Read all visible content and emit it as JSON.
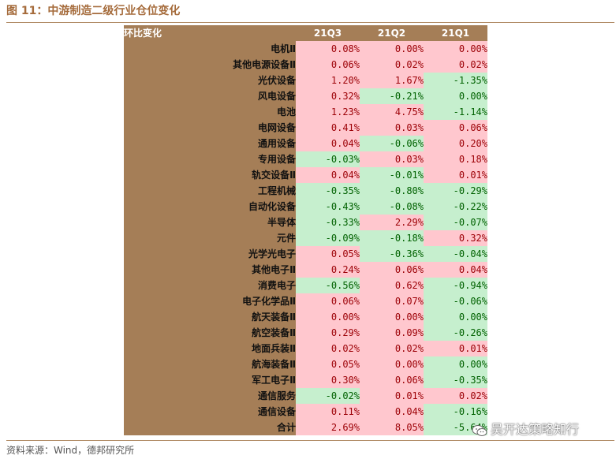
{
  "figure": {
    "title": "图 11：中游制造二级行业仓位变化",
    "source": "资料来源：Wind，德邦研究所",
    "watermark": "吴开达策略知行",
    "watermark_icon": "wechat-icon"
  },
  "table": {
    "header": {
      "label": "环比变化",
      "columns": [
        "21Q3",
        "21Q2",
        "21Q1"
      ]
    },
    "rows": [
      {
        "name": "电机Ⅱ",
        "values": [
          "0.08%",
          "0.00%",
          "0.00%"
        ]
      },
      {
        "name": "其他电源设备Ⅱ",
        "values": [
          "0.06%",
          "0.02%",
          "0.02%"
        ]
      },
      {
        "name": "光伏设备",
        "values": [
          "1.20%",
          "1.67%",
          "-1.35%"
        ]
      },
      {
        "name": "风电设备",
        "values": [
          "0.32%",
          "-0.21%",
          "0.00%"
        ]
      },
      {
        "name": "电池",
        "values": [
          "1.23%",
          "4.75%",
          "-1.14%"
        ]
      },
      {
        "name": "电网设备",
        "values": [
          "0.41%",
          "0.03%",
          "0.06%"
        ]
      },
      {
        "name": "通用设备",
        "values": [
          "0.04%",
          "-0.06%",
          "0.20%"
        ]
      },
      {
        "name": "专用设备",
        "values": [
          "-0.03%",
          "0.03%",
          "0.18%"
        ]
      },
      {
        "name": "轨交设备Ⅱ",
        "values": [
          "0.04%",
          "-0.01%",
          "0.01%"
        ]
      },
      {
        "name": "工程机械",
        "values": [
          "-0.35%",
          "-0.80%",
          "-0.29%"
        ]
      },
      {
        "name": "自动化设备",
        "values": [
          "-0.43%",
          "-0.08%",
          "-0.22%"
        ]
      },
      {
        "name": "半导体",
        "values": [
          "-0.33%",
          "2.29%",
          "-0.07%"
        ]
      },
      {
        "name": "元件",
        "values": [
          "-0.09%",
          "-0.18%",
          "0.32%"
        ]
      },
      {
        "name": "光学光电子",
        "values": [
          "0.05%",
          "-0.36%",
          "-0.04%"
        ]
      },
      {
        "name": "其他电子Ⅱ",
        "values": [
          "0.24%",
          "0.06%",
          "0.04%"
        ]
      },
      {
        "name": "消费电子",
        "values": [
          "-0.56%",
          "0.62%",
          "-0.94%"
        ]
      },
      {
        "name": "电子化学品Ⅱ",
        "values": [
          "0.06%",
          "0.07%",
          "-0.06%"
        ]
      },
      {
        "name": "航天装备Ⅱ",
        "values": [
          "0.00%",
          "0.00%",
          "0.00%"
        ]
      },
      {
        "name": "航空装备Ⅱ",
        "values": [
          "0.29%",
          "0.09%",
          "-0.26%"
        ]
      },
      {
        "name": "地面兵装Ⅱ",
        "values": [
          "0.02%",
          "0.02%",
          "0.01%"
        ]
      },
      {
        "name": "航海装备Ⅱ",
        "values": [
          "0.05%",
          "0.00%",
          "0.00%"
        ]
      },
      {
        "name": "军工电子Ⅱ",
        "values": [
          "0.30%",
          "0.06%",
          "-0.35%"
        ]
      },
      {
        "name": "通信服务",
        "values": [
          "-0.02%",
          "0.01%",
          "0.02%"
        ]
      },
      {
        "name": "通信设备",
        "values": [
          "0.11%",
          "0.04%",
          "-0.16%"
        ]
      },
      {
        "name": "合计",
        "values": [
          "2.69%",
          "8.05%",
          "-5.64%"
        ]
      }
    ],
    "cell_styles": [
      [
        "pos",
        "zero",
        "zero"
      ],
      [
        "pos",
        "pos",
        "pos"
      ],
      [
        "pos",
        "pos",
        "neg"
      ],
      [
        "pos",
        "neg",
        "neg"
      ],
      [
        "pos",
        "pos",
        "neg"
      ],
      [
        "pos",
        "pos",
        "pos"
      ],
      [
        "pos",
        "neg",
        "pos"
      ],
      [
        "neg",
        "pos",
        "pos"
      ],
      [
        "pos",
        "neg",
        "pos"
      ],
      [
        "neg",
        "neg",
        "neg"
      ],
      [
        "neg",
        "neg",
        "neg"
      ],
      [
        "neg",
        "pos",
        "neg"
      ],
      [
        "neg",
        "neg",
        "pos"
      ],
      [
        "pos",
        "neg",
        "neg"
      ],
      [
        "pos",
        "pos",
        "pos"
      ],
      [
        "neg",
        "pos",
        "neg"
      ],
      [
        "pos",
        "pos",
        "neg"
      ],
      [
        "pos",
        "pos",
        "neg"
      ],
      [
        "pos",
        "pos",
        "neg"
      ],
      [
        "pos",
        "pos",
        "pos"
      ],
      [
        "pos",
        "pos",
        "neg"
      ],
      [
        "pos",
        "pos",
        "neg"
      ],
      [
        "neg",
        "pos",
        "pos"
      ],
      [
        "pos",
        "pos",
        "neg"
      ],
      [
        "pos",
        "pos",
        "neg"
      ]
    ],
    "colors": {
      "positive_bg": "#ffc7ce",
      "positive_text": "#9c0006",
      "negative_bg": "#c6efce",
      "negative_text": "#006100",
      "label_bg": "#a57e57",
      "title_color": "#a56b3b"
    }
  }
}
